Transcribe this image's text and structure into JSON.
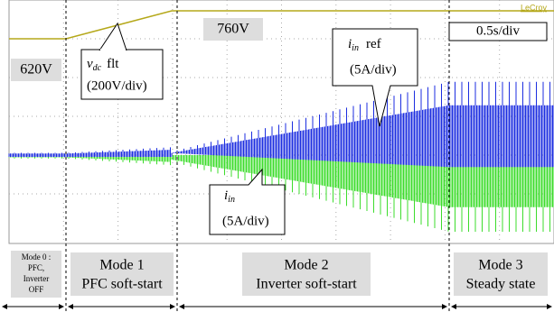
{
  "scope": {
    "brand": "LeCroy",
    "timebase": "0.5s/div"
  },
  "levels": {
    "low": "620V",
    "high": "760V"
  },
  "callouts": {
    "vdc": {
      "symbol": "v",
      "subscript": "dc",
      "text": "flt",
      "scale": "(200V/div)"
    },
    "iin_ref": {
      "symbol": "i",
      "subscript": "in",
      "text": "ref",
      "scale": "(5A/div)"
    },
    "iin": {
      "symbol": "i",
      "subscript": "in",
      "scale": "(5A/div)"
    }
  },
  "modes": [
    {
      "lines": [
        "Mode 0 :",
        "PFC,",
        "Inverter",
        "OFF"
      ]
    },
    {
      "lines": [
        "Mode 1",
        "PFC soft-start"
      ]
    },
    {
      "lines": [
        "Mode 2",
        "Inverter soft-start"
      ]
    },
    {
      "lines": [
        "Mode 3",
        "Steady state"
      ]
    }
  ]
}
